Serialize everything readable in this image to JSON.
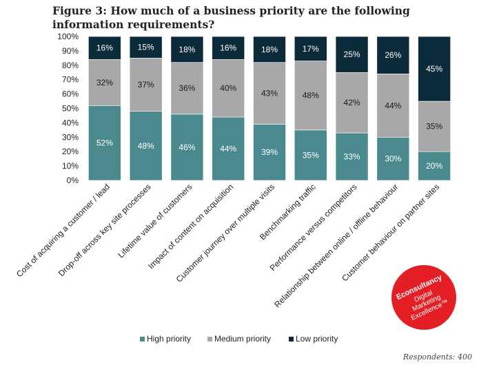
{
  "title": "Figure 3: How much of a business priority are the following information requirements?",
  "footer": "Respondents: 400",
  "logo": {
    "brand": "Econsultancy",
    "line1": "Digital",
    "line2": "Marketing",
    "line3": "Excellence™",
    "color": "#e31e24"
  },
  "colors": {
    "High priority": "#4a8a8f",
    "Medium priority": "#a8a8aa",
    "Low priority": "#0b2a3a"
  },
  "chart_data": {
    "type": "bar",
    "stacked": true,
    "categories": [
      "Cost of acquiring a customer / lead",
      "Drop-off across key site processes",
      "Lifetime value of customers",
      "Impact of content on acquisition",
      "Customer journey over multiple visits",
      "Benchmarking traffic",
      "Performance versus competitors",
      "Relationship between online / offline behaviour",
      "Customer behaviour on partner sites"
    ],
    "series": [
      {
        "name": "High priority",
        "values": [
          52,
          48,
          46,
          44,
          39,
          35,
          33,
          30,
          20
        ]
      },
      {
        "name": "Medium priority",
        "values": [
          32,
          37,
          36,
          40,
          43,
          48,
          42,
          44,
          35
        ]
      },
      {
        "name": "Low priority",
        "values": [
          16,
          15,
          18,
          16,
          18,
          17,
          25,
          26,
          45
        ]
      }
    ],
    "yticks": [
      "0%",
      "10%",
      "20%",
      "30%",
      "40%",
      "50%",
      "60%",
      "70%",
      "80%",
      "90%",
      "100%"
    ],
    "ylim": [
      0,
      100
    ],
    "grid": false,
    "legend": "bottom"
  }
}
